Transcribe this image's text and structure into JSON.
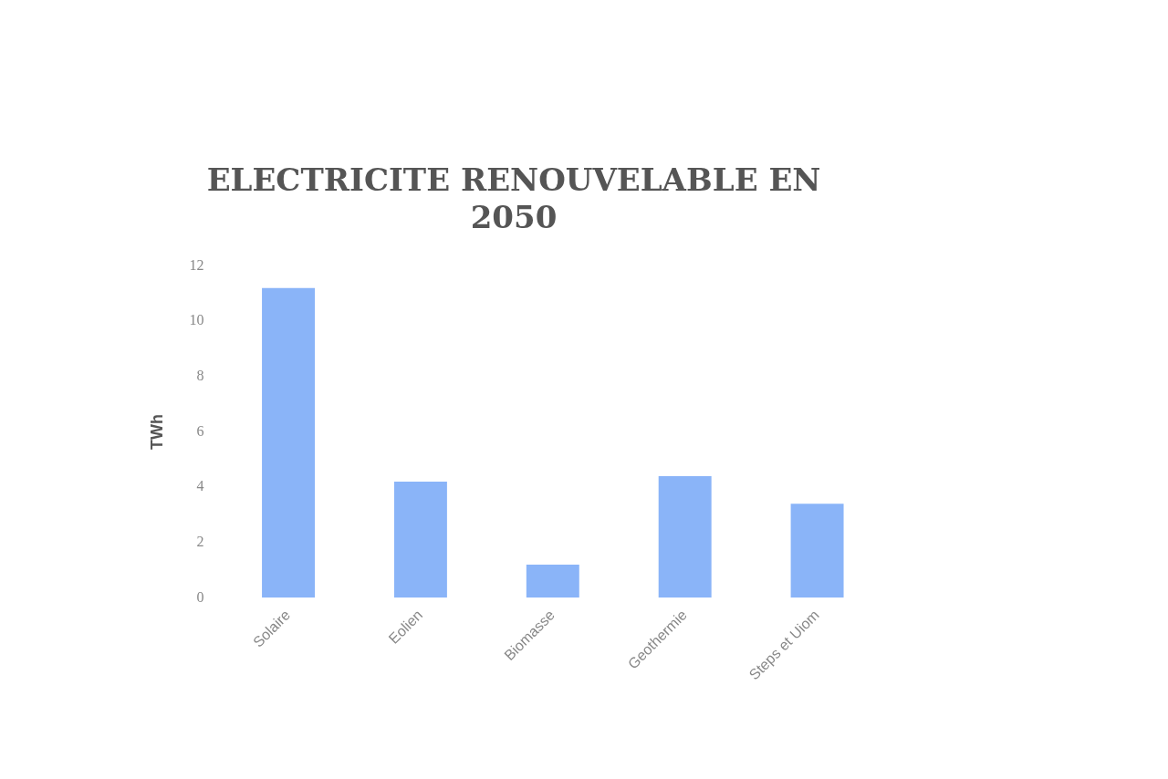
{
  "chart_data": {
    "type": "bar",
    "title": [
      "ELECTRICITE RENOUVELABLE EN",
      "2050"
    ],
    "ylabel": "TWh",
    "categories": [
      "Solaire",
      "Eolien",
      "Biomasse",
      "Geothermie",
      "Steps et Uiom"
    ],
    "values": [
      11.2,
      4.2,
      1.2,
      4.4,
      3.4
    ],
    "color": "#8ab4f8",
    "ylim": [
      0,
      12
    ],
    "yticks": [
      0,
      2,
      4,
      6,
      8,
      10,
      12
    ],
    "grid": false,
    "legend": false
  }
}
